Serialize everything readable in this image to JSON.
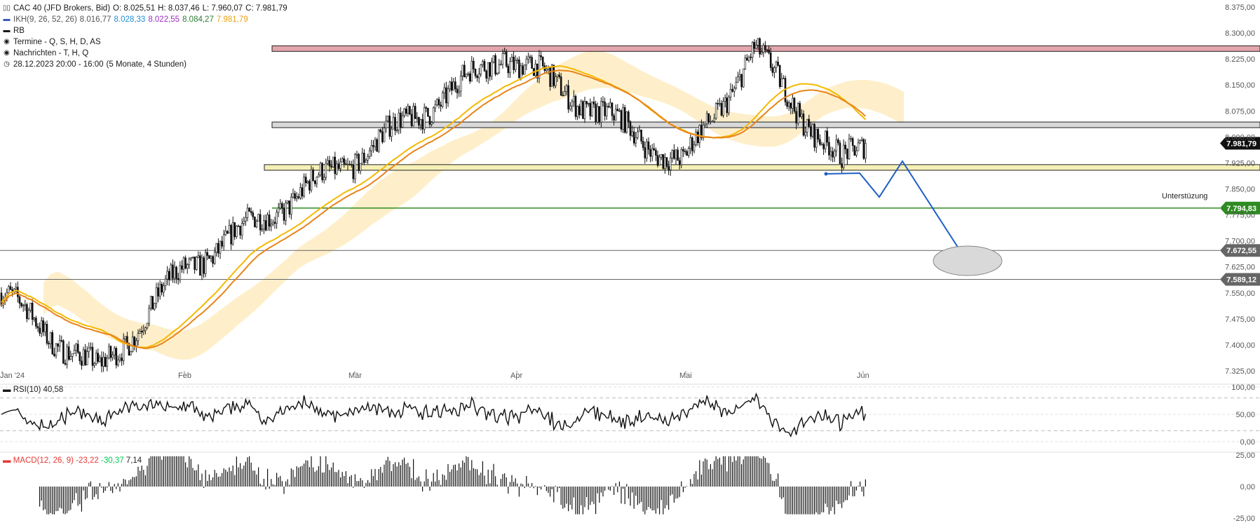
{
  "header": {
    "title_line": "CAC 40 (JFD Brokers, Bid)",
    "ohlc": {
      "O": "O: 8.025,51",
      "H": "H: 8.037,46",
      "L": "L: 7.960,07",
      "C": "C: 7.981,79"
    },
    "ikh_label": "IKH(9, 26, 52, 26)",
    "ikh_values": [
      "8.016,77",
      "8.028,33",
      "8.022,55",
      "8.084,27",
      "7.981,79"
    ],
    "ikh_colors": [
      "#555555",
      "#1f8fd1",
      "#9b30c4",
      "#2e7d32",
      "#e8a317"
    ],
    "rb_label": "RB",
    "termine_label": "Termine - Q, S, H, D, AS",
    "nachrichten_label": "Nachrichten - T, H, Q",
    "range_label": "28.12.2023 20:00 - 16:00",
    "range_detail": "(5 Monate, 4 Stunden)"
  },
  "annotation": {
    "support_text": "Unterstüzung"
  },
  "rsi": {
    "label": "RSI(10)",
    "value": "40,58",
    "ticks": [
      "100,00",
      "50,00",
      "0,00"
    ]
  },
  "macd": {
    "label": "MACD(12, 26, 9)",
    "values": [
      "-23,22",
      "-30,37",
      "7,14"
    ],
    "colors": [
      "#e53935",
      "#00c853",
      "#222222"
    ],
    "ticks": [
      "25,00",
      "0,00",
      "-25,00"
    ]
  },
  "chart_data": {
    "type": "candlestick",
    "instrument": "CAC 40 (JFD Brokers, Bid)",
    "x_ticks": [
      "Jan '24",
      "Feb",
      "Mär",
      "Apr",
      "Mai",
      "Jun"
    ],
    "y_ticks": [
      "8.375,00",
      "8.300,00",
      "8.225,00",
      "8.150,00",
      "8.075,00",
      "8.000,00",
      "7.925,00",
      "7.850,00",
      "7.775,00",
      "7.700,00",
      "7.625,00",
      "7.550,00",
      "7.475,00",
      "7.400,00",
      "7.325,00"
    ],
    "ylim": [
      7310,
      8385
    ],
    "key_points": [
      {
        "date": "Jan '24",
        "close": 7550
      },
      {
        "date": "Mitte Jan",
        "close": 7320
      },
      {
        "date": "Feb",
        "close": 7620
      },
      {
        "date": "Mär",
        "close": 7940
      },
      {
        "date": "Apr",
        "close": 8240
      },
      {
        "date": "Mai",
        "close": 7920
      },
      {
        "date": "Mitte Mai",
        "close": 8250
      },
      {
        "date": "Ende Mai",
        "close": 7920
      },
      {
        "date": "Jun",
        "close": 7981.79
      }
    ],
    "horizontal_levels": [
      {
        "value": 8255,
        "color": "#e3a6ad",
        "kind": "zone"
      },
      {
        "value": 8035,
        "color": "#d9d9d9",
        "kind": "zone"
      },
      {
        "value": 7912,
        "color": "#f6f0b6",
        "kind": "zone"
      },
      {
        "value": 7794.83,
        "label": "7.794,83",
        "color": "#2e8b22"
      },
      {
        "value": 7672.55,
        "label": "7.672,55",
        "color": "#666666"
      },
      {
        "value": 7589.12,
        "label": "7.589,12",
        "color": "#666666"
      }
    ],
    "last_price": {
      "value": 7981.79,
      "label": "7.981,79"
    }
  }
}
